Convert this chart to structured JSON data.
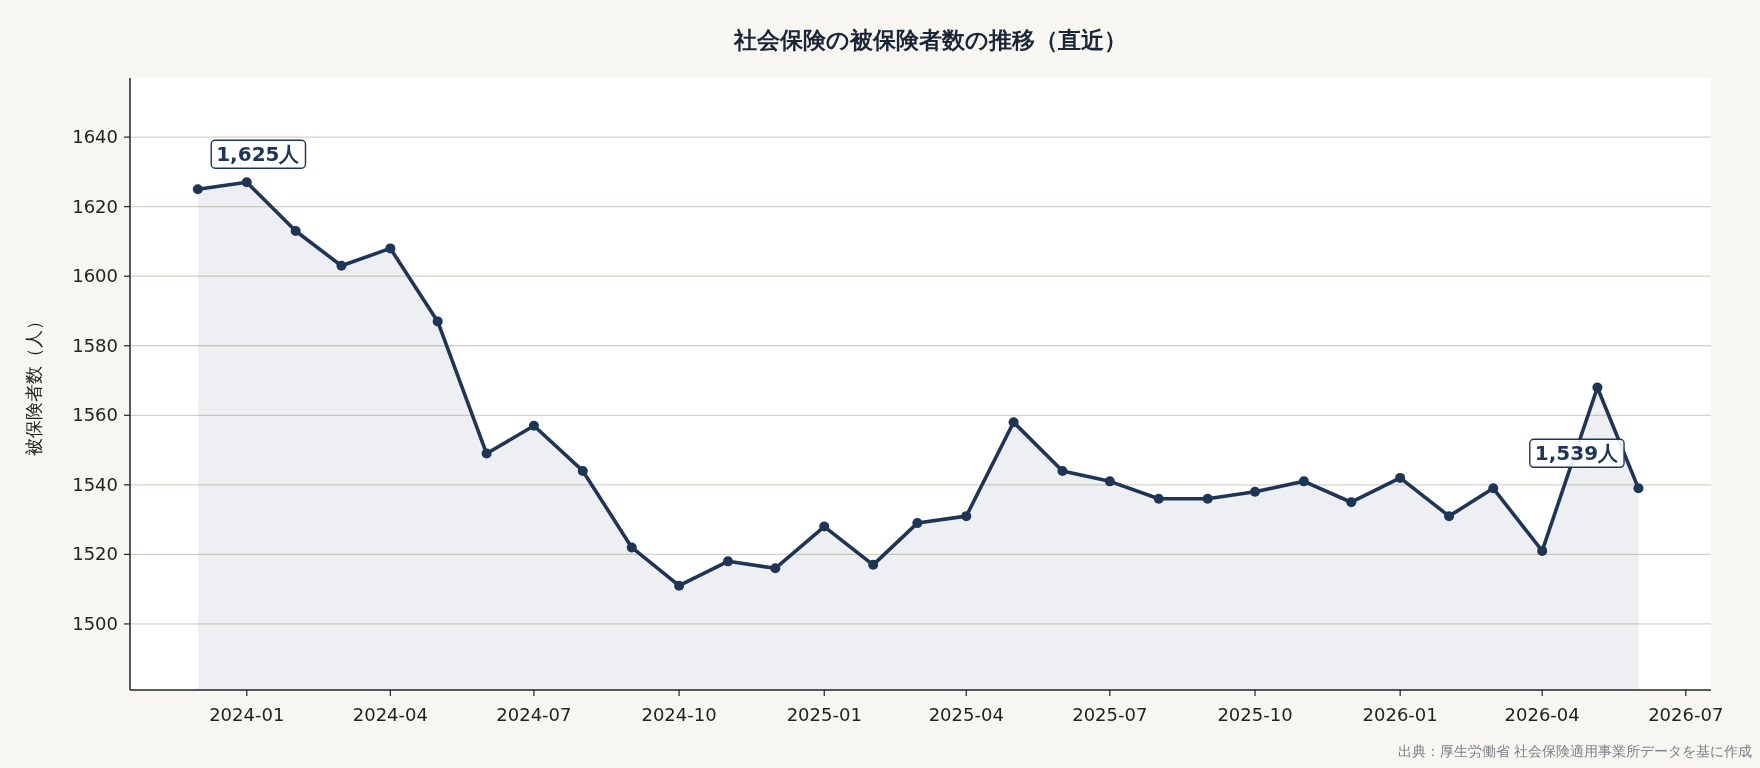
{
  "chart_data": {
    "type": "area",
    "title": "社会保険の被保険者数の推移（直近）",
    "ylabel": "被保険者数（人）",
    "x": [
      "2023-12-01",
      "2024-01-01",
      "2024-02-01",
      "2024-03-01",
      "2024-04-01",
      "2024-05-01",
      "2024-06-01",
      "2024-07-01",
      "2024-08-01",
      "2024-09-01",
      "2024-10-01",
      "2024-11-01",
      "2024-12-01",
      "2025-01-01",
      "2025-02-01",
      "2025-03-01",
      "2025-04-01",
      "2025-05-01",
      "2025-06-01",
      "2025-07-01",
      "2025-08-01",
      "2025-09-01",
      "2025-10-01",
      "2025-11-01",
      "2025-12-01",
      "2026-01-01",
      "2026-02-01",
      "2026-03-01",
      "2026-04-01",
      "2026-05-06",
      "2026-06-01"
    ],
    "series": [
      {
        "color": "#1f3556",
        "values": [
          1625,
          1627,
          1613,
          1603,
          1608,
          1587,
          1549,
          1557,
          1544,
          1522,
          1511,
          1518,
          1516,
          1528,
          1517,
          1529,
          1531,
          1558,
          1544,
          1541,
          1536,
          1536,
          1538,
          1541,
          1535,
          1542,
          1531,
          1539,
          1521,
          1568,
          1539
        ]
      }
    ],
    "xlim": [
      "2023-10-19",
      "2026-07-17"
    ],
    "xticks": [
      "2024-01",
      "2024-04",
      "2024-07",
      "2024-10",
      "2025-01",
      "2025-04",
      "2025-07",
      "2025-10",
      "2026-01",
      "2026-04",
      "2026-07"
    ],
    "ylim": [
      1481,
      1657
    ],
    "yticks": [
      1500,
      1520,
      1540,
      1560,
      1580,
      1600,
      1620,
      1640
    ],
    "grid": "y",
    "marker": "circle",
    "line_style": "solid",
    "annotations": [
      {
        "text": "1,625人",
        "x": "2023-12-01",
        "y": 1625
      },
      {
        "text": "1,539人",
        "x": "2026-06-01",
        "y": 1539
      },
      "出典：厚生労働省 社会保険適用事業所データを基に作成"
    ]
  }
}
